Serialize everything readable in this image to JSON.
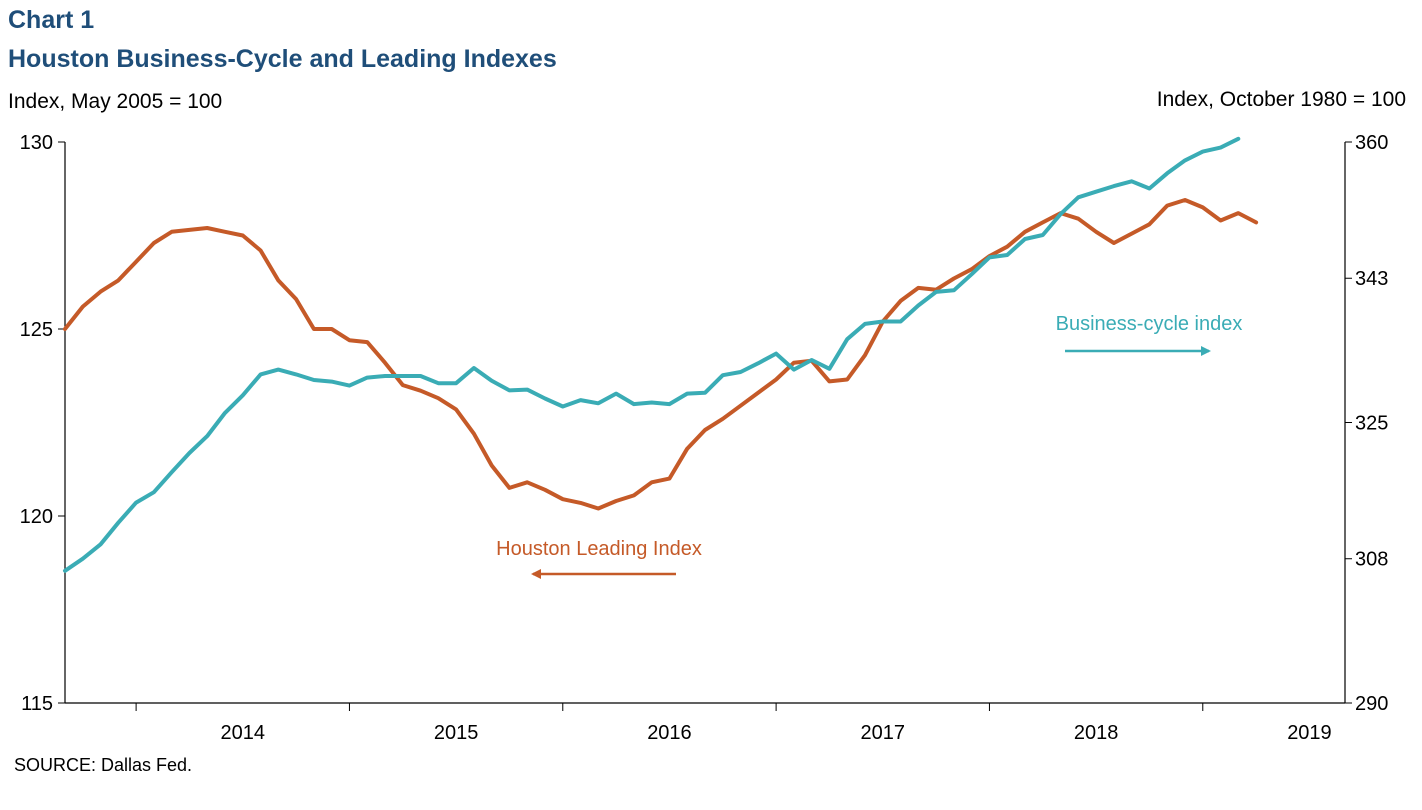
{
  "header": {
    "chart_label": "Chart 1",
    "title": "Houston Business-Cycle and Leading Indexes",
    "left_axis_unit": "Index, May 2005 = 100",
    "right_axis_unit": "Index, October 1980 = 100"
  },
  "footer": {
    "source": "SOURCE: Dallas Fed."
  },
  "colors": {
    "leading": "#c55a28",
    "business": "#3aacb5",
    "axis": "#000000"
  },
  "chart_data": {
    "type": "line",
    "x_start": "2013-09",
    "x_end": "2019-09",
    "x_ticks": [
      "2014",
      "2015",
      "2016",
      "2017",
      "2018",
      "2019"
    ],
    "y_left": {
      "ylim": [
        115,
        130
      ],
      "ticks": [
        115,
        120,
        125,
        130
      ]
    },
    "y_right": {
      "ylim": [
        290,
        360
      ],
      "ticks": [
        290,
        308,
        325,
        343,
        360
      ]
    },
    "grid": false,
    "series": [
      {
        "name": "Houston Leading Index",
        "axis": "left",
        "direction": "left",
        "values": [
          125.0,
          125.6,
          126.0,
          126.3,
          126.8,
          127.3,
          127.6,
          127.65,
          127.7,
          127.6,
          127.5,
          127.1,
          126.3,
          125.8,
          125.0,
          125.0,
          124.7,
          124.65,
          124.1,
          123.5,
          123.35,
          123.15,
          122.85,
          122.2,
          121.35,
          120.75,
          120.9,
          120.7,
          120.45,
          120.35,
          120.2,
          120.4,
          120.55,
          120.9,
          121.0,
          121.8,
          122.3,
          122.6,
          122.95,
          123.3,
          123.65,
          124.1,
          124.15,
          123.6,
          123.65,
          124.3,
          125.2,
          125.75,
          126.1,
          126.05,
          126.35,
          126.6,
          126.95,
          127.2,
          127.6,
          127.85,
          128.1,
          127.95,
          127.6,
          127.3,
          127.55,
          127.8,
          128.3,
          128.45,
          128.25,
          127.9,
          128.1,
          127.85
        ]
      },
      {
        "name": "Business-cycle index",
        "axis": "right",
        "direction": "right",
        "values": [
          306.5,
          308.0,
          309.8,
          312.5,
          315.0,
          316.3,
          318.8,
          321.2,
          323.3,
          326.2,
          328.4,
          331.0,
          331.6,
          331.0,
          330.3,
          330.1,
          329.6,
          330.6,
          330.8,
          330.8,
          330.8,
          329.9,
          329.9,
          331.8,
          330.2,
          329.0,
          329.1,
          328.0,
          327.0,
          327.8,
          327.4,
          328.6,
          327.3,
          327.5,
          327.3,
          328.6,
          328.7,
          330.9,
          331.3,
          332.4,
          333.6,
          331.6,
          332.8,
          331.7,
          335.4,
          337.3,
          337.6,
          337.6,
          339.6,
          341.3,
          341.5,
          343.5,
          345.6,
          345.9,
          347.9,
          348.4,
          351.0,
          353.1,
          353.8,
          354.5,
          355.1,
          354.2,
          356.1,
          357.7,
          358.8,
          359.3,
          360.4
        ]
      }
    ]
  }
}
